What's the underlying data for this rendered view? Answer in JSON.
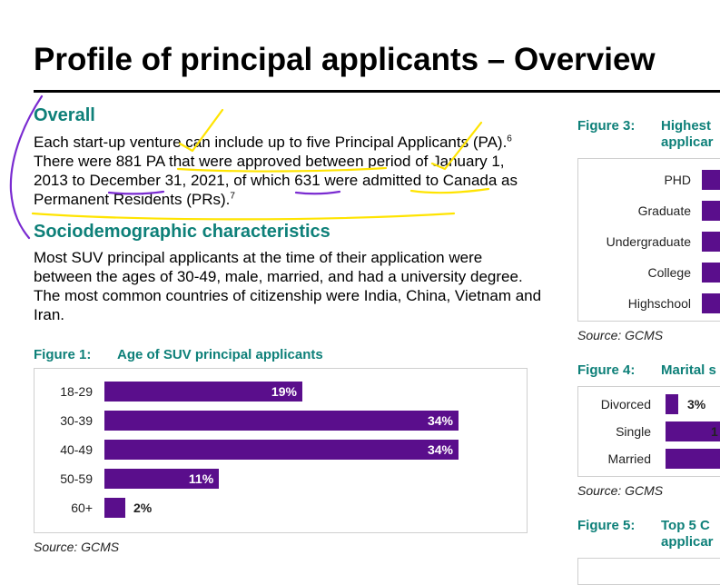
{
  "title": "Profile of principal applicants – Overview",
  "overall": {
    "heading": "Overall",
    "p1": "Each start-up venture can include up to five Principal Applicants (PA).",
    "fn1": "6",
    "p2": " There were 881 PA that were approved between period of January 1, 2013 to December 31, 2021, of which 631 were admitted to Canada as Permanent Residents (PRs).",
    "fn2": "7"
  },
  "socio": {
    "heading": "Sociodemographic characteristics",
    "text": "Most SUV principal applicants at the time of their application were between the ages of 30-49, male, married, and had a university degree. The most common countries of citizenship were India, China, Vietnam and Iran."
  },
  "figure1": {
    "number": "Figure 1:",
    "title": "Age of SUV principal applicants",
    "source": "Source: GCMS"
  },
  "figure3": {
    "number": "Figure 3:",
    "title_line1": "Highest",
    "title_line2": "applicar",
    "source": "Source: GCMS"
  },
  "figure4": {
    "number": "Figure 4:",
    "title": "Marital s",
    "source": "Source: GCMS"
  },
  "figure5": {
    "number": "Figure 5:",
    "title_line1": "Top 5 C",
    "title_line2": "applicar"
  },
  "colors": {
    "bar": "#5a0e8c",
    "teal": "#0e8079",
    "yellow": "#ffe400",
    "pen_purple": "#7a2bd1"
  },
  "chart_data": [
    {
      "type": "bar",
      "orientation": "horizontal",
      "categories": [
        "18-29",
        "30-39",
        "40-49",
        "50-59",
        "60+"
      ],
      "values": [
        19,
        34,
        34,
        11,
        2
      ],
      "value_labels": [
        "19%",
        "34%",
        "34%",
        "11%",
        "2%"
      ],
      "title": "Age of SUV principal applicants",
      "xlim": [
        0,
        34
      ]
    },
    {
      "type": "bar",
      "orientation": "horizontal",
      "categories": [
        "PHD",
        "Graduate",
        "Undergraduate",
        "College",
        "Highschool"
      ],
      "title": "Highest applicar"
    },
    {
      "type": "bar",
      "orientation": "horizontal",
      "categories": [
        "Divorced",
        "Single",
        "Married"
      ],
      "value_labels": [
        "3%",
        "1",
        ""
      ],
      "title": "Marital s"
    }
  ]
}
